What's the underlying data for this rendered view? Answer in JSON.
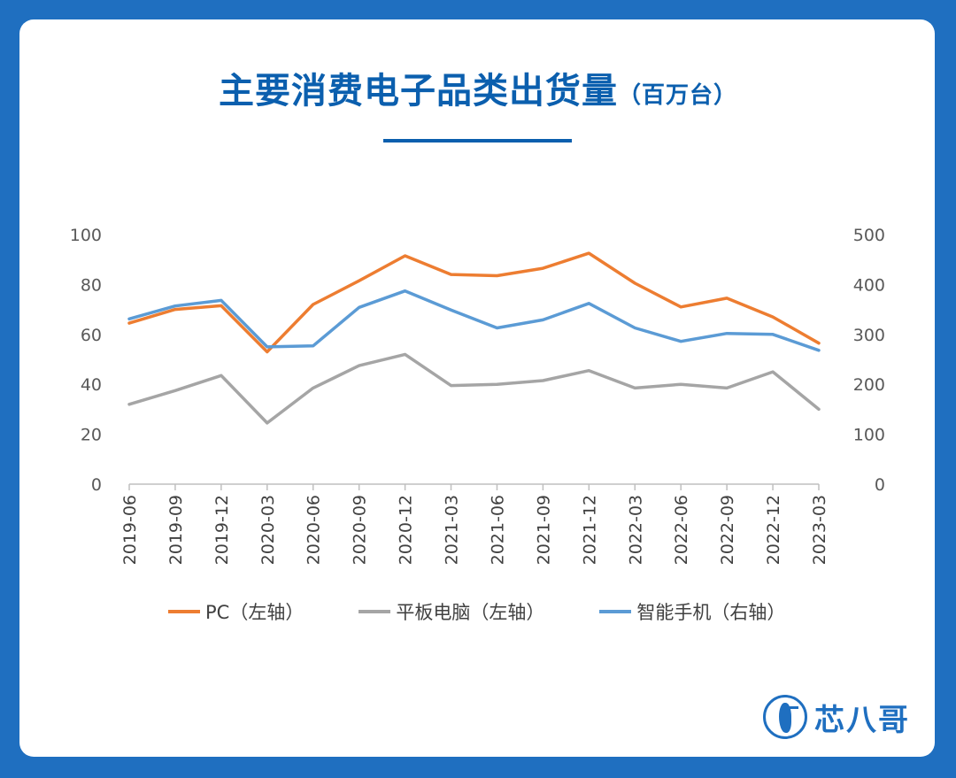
{
  "header": {
    "title": "主要消费电子品类出货量",
    "unit": "（百万台）"
  },
  "legend": {
    "items": [
      {
        "label": "PC（左轴）",
        "color": "#ed7d31"
      },
      {
        "label": "平板电脑（左轴）",
        "color": "#a5a5a5"
      },
      {
        "label": "智能手机（右轴）",
        "color": "#5b9bd5"
      }
    ]
  },
  "brand": {
    "name": "芯八哥",
    "icon": "kingfisher-logo-icon"
  },
  "colors": {
    "background": "#1f6fc0",
    "title": "#0b5fae"
  },
  "chart_data": {
    "type": "line",
    "categories": [
      "2019-06",
      "2019-09",
      "2019-12",
      "2020-03",
      "2020-06",
      "2020-09",
      "2020-12",
      "2021-03",
      "2021-06",
      "2021-09",
      "2021-12",
      "2022-03",
      "2022-06",
      "2022-09",
      "2022-12",
      "2023-03"
    ],
    "y_left": {
      "ticks": [
        "0",
        "20",
        "40",
        "60",
        "80",
        "100"
      ],
      "range": [
        0,
        100
      ]
    },
    "y_right": {
      "ticks": [
        "0",
        "100",
        "200",
        "300",
        "400",
        "500"
      ],
      "range": [
        0,
        500
      ]
    },
    "series": [
      {
        "name": "PC（左轴）",
        "axis": "left",
        "color": "#ed7d31",
        "values": [
          64.5,
          70,
          71.5,
          53,
          72,
          81.5,
          91.5,
          84,
          83.5,
          86.5,
          92.5,
          80.5,
          71,
          74.5,
          67,
          56.5
        ]
      },
      {
        "name": "平板电脑（左轴）",
        "axis": "left",
        "color": "#a5a5a5",
        "values": [
          32,
          37.5,
          43.5,
          24.5,
          38.5,
          47.5,
          52,
          39.5,
          40,
          41.5,
          45.5,
          38.5,
          40,
          38.5,
          45,
          30
        ]
      },
      {
        "name": "智能手机（右轴）",
        "axis": "right",
        "color": "#5b9bd5",
        "values": [
          331,
          357,
          368,
          275,
          277,
          354,
          387,
          349,
          313,
          329,
          362,
          313,
          286,
          302,
          300,
          268
        ]
      }
    ],
    "grid": false,
    "legend_position": "bottom"
  }
}
